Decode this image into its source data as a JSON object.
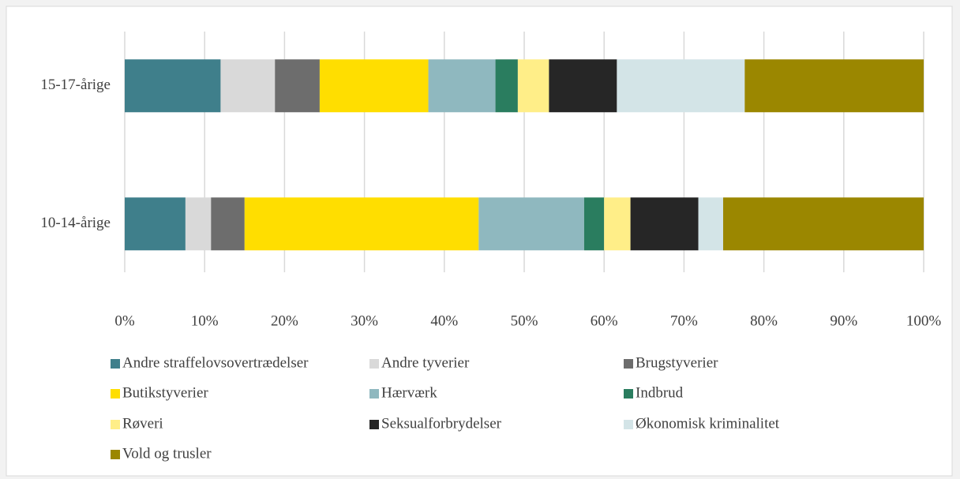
{
  "chart_data": {
    "type": "stacked_barh",
    "categories": [
      "15-17-årige",
      "10-14-årige"
    ],
    "series": [
      {
        "name": "Andre straffelovsovertrædelser",
        "color": "#3f7f8b",
        "values": [
          12.0,
          7.6
        ]
      },
      {
        "name": "Andre tyverier",
        "color": "#d9d9d9",
        "values": [
          6.8,
          3.2
        ]
      },
      {
        "name": "Brugstyverier",
        "color": "#6d6d6d",
        "values": [
          5.6,
          4.2
        ]
      },
      {
        "name": "Butikstyverier",
        "color": "#ffde00",
        "values": [
          13.6,
          29.3
        ]
      },
      {
        "name": "Hærværk",
        "color": "#8fb8bf",
        "values": [
          8.4,
          13.2
        ]
      },
      {
        "name": "Indbrud",
        "color": "#2a7d5f",
        "values": [
          2.8,
          2.5
        ]
      },
      {
        "name": "Røveri",
        "color": "#ffee88",
        "values": [
          3.9,
          3.3
        ]
      },
      {
        "name": "Seksualforbrydelser",
        "color": "#262626",
        "values": [
          8.5,
          8.5
        ]
      },
      {
        "name": "Økonomisk kriminalitet",
        "color": "#d3e4e7",
        "values": [
          16.0,
          3.1
        ]
      },
      {
        "name": "Vold og trusler",
        "color": "#9b8700",
        "values": [
          22.4,
          25.1
        ]
      }
    ],
    "xlim": [
      0,
      100
    ],
    "xticks": [
      {
        "value": 0,
        "label": "0%"
      },
      {
        "value": 10,
        "label": "10%"
      },
      {
        "value": 20,
        "label": "20%"
      },
      {
        "value": 30,
        "label": "30%"
      },
      {
        "value": 40,
        "label": "40%"
      },
      {
        "value": 50,
        "label": "50%"
      },
      {
        "value": 60,
        "label": "60%"
      },
      {
        "value": 70,
        "label": "70%"
      },
      {
        "value": 80,
        "label": "80%"
      },
      {
        "value": 90,
        "label": "90%"
      },
      {
        "value": 100,
        "label": "100%"
      }
    ],
    "grid": true,
    "legend": "bottom"
  }
}
